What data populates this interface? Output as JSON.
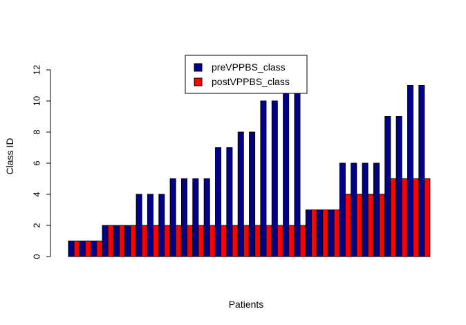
{
  "chart_data": {
    "type": "bar",
    "title": "",
    "xlabel": "Patients",
    "ylabel": "Class ID",
    "ylim": [
      0,
      12
    ],
    "yticks": [
      0,
      2,
      4,
      6,
      8,
      10,
      12
    ],
    "legend": {
      "placement": "top-center"
    },
    "series": [
      {
        "name": "preVPPBS_class",
        "color": "#00008B",
        "values": [
          1,
          1,
          1,
          2,
          2,
          2,
          4,
          4,
          4,
          5,
          5,
          5,
          5,
          7,
          7,
          8,
          8,
          10,
          10,
          11,
          11,
          3,
          3,
          3,
          6,
          6,
          6,
          6,
          9,
          9,
          11,
          11
        ]
      },
      {
        "name": "postVPPBS_class",
        "color": "#FF0000",
        "values": [
          1,
          1,
          1,
          2,
          2,
          2,
          2,
          2,
          2,
          2,
          2,
          2,
          2,
          2,
          2,
          2,
          2,
          2,
          2,
          2,
          2,
          3,
          3,
          3,
          4,
          4,
          4,
          4,
          5,
          5,
          5,
          5
        ]
      }
    ]
  }
}
